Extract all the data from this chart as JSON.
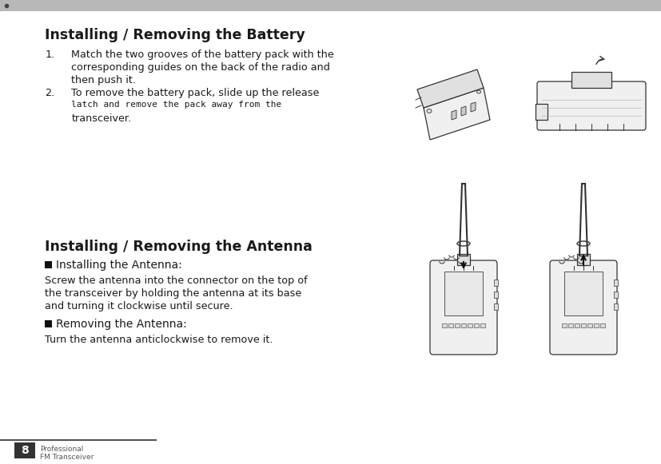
{
  "bg_color": "#ffffff",
  "header_bar_color": "#b8b8b8",
  "page_num": "8",
  "page_label_line1": "Professional",
  "page_label_line2": "FM Transceiver",
  "title_battery": "Installing / Removing the Battery",
  "title_antenna": "Installing / Removing the Antenna",
  "b1_line1": "Match the two grooves of the battery pack with the",
  "b1_line2": "corresponding guides on the back of the radio and",
  "b1_line3": "then push it.",
  "b2_line1": "To remove the battery pack, slide up the release",
  "b2_line2": "latch and remove the pack away from the",
  "b2_line3": "transceiver.",
  "a_sub1_label": "Installing the Antenna:",
  "a_sub1_line1": "Screw the antenna into the connector on the top of",
  "a_sub1_line2": "the transceiver by holding the antenna at its base",
  "a_sub1_line3": "and turning it clockwise until secure.",
  "a_sub2_label": "Removing the Antenna:",
  "a_sub2_line1": "Turn the antenna anticlockwise to remove it.",
  "lm": 0.068,
  "indent": 0.108,
  "fs_title": 12.5,
  "fs_body": 9.2,
  "fs_sub": 10.0,
  "fs_footer": 6.5,
  "fs_pagenum": 10.0,
  "fs_mono": 8.0,
  "text_color": "#1a1a1a",
  "line_color": "#666666"
}
